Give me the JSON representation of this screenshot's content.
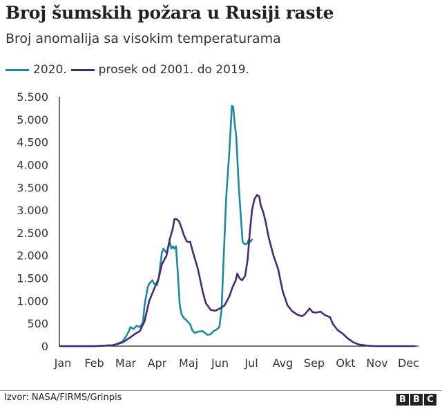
{
  "header": {
    "title": "Broj šumskih požara u Rusiji raste",
    "subtitle": "Broj anomalija sa visokim temperaturama"
  },
  "legend": [
    {
      "label": "2020.",
      "color": "#1a8aa3"
    },
    {
      "label": "prosek od 2001. do 2019.",
      "color": "#4a2878"
    }
  ],
  "footer": {
    "source": "Izvor: NASA/FIRMS/Grinpis",
    "logo_letters": [
      "B",
      "B",
      "C"
    ]
  },
  "chart_data": {
    "type": "line",
    "title": "Broj šumskih požara u Rusiji raste",
    "subtitle": "Broj anomalija sa visokim temperaturama",
    "xlabel": "",
    "ylabel": "",
    "x_unit": "month index (0 = Jan, 11 = Dec)",
    "categories": [
      "Jan",
      "Feb",
      "Mar",
      "Apr",
      "Maj",
      "Jun",
      "Jul",
      "Avg",
      "Sep",
      "Okt",
      "Nov",
      "Dec"
    ],
    "ylim": [
      0,
      5500
    ],
    "yticks": [
      0,
      500,
      1000,
      1500,
      2000,
      2500,
      3000,
      3500,
      4000,
      4500,
      5000,
      5500
    ],
    "ytick_labels": [
      "0",
      "500",
      "1.000",
      "1.500",
      "2.000",
      "2.500",
      "3.000",
      "3.500",
      "4.000",
      "4.500",
      "5.000",
      "5.500"
    ],
    "grid": false,
    "legend_position": "top-left",
    "series": [
      {
        "name": "2020.",
        "color": "#1a8aa3",
        "x": [
          -0.1,
          1.0,
          1.6,
          1.9,
          2.0,
          2.1,
          2.15,
          2.25,
          2.35,
          2.45,
          2.55,
          2.6,
          2.7,
          2.75,
          2.85,
          2.9,
          3.0,
          3.05,
          3.15,
          3.2,
          3.3,
          3.4,
          3.45,
          3.5,
          3.55,
          3.6,
          3.65,
          3.72,
          3.78,
          3.85,
          3.95,
          4.05,
          4.12,
          4.2,
          4.3,
          4.45,
          4.6,
          4.7,
          4.8,
          4.92,
          4.98,
          5.05,
          5.12,
          5.2,
          5.3,
          5.38,
          5.42,
          5.47,
          5.52,
          5.6,
          5.65,
          5.72,
          5.78,
          5.85,
          5.92,
          5.97,
          6.02
        ],
        "values": [
          0,
          0,
          20,
          100,
          200,
          330,
          420,
          380,
          450,
          420,
          520,
          900,
          1300,
          1380,
          1450,
          1380,
          1350,
          1500,
          2050,
          2150,
          2050,
          2300,
          2150,
          2200,
          2150,
          2200,
          1700,
          900,
          700,
          620,
          560,
          480,
          350,
          290,
          320,
          330,
          250,
          260,
          330,
          380,
          420,
          800,
          2000,
          3300,
          4300,
          5300,
          5280,
          4900,
          4600,
          3500,
          3000,
          2300,
          2250,
          2250,
          2350,
          2300,
          2350
        ]
      },
      {
        "name": "prosek od 2001. do 2019.",
        "color": "#4a2878",
        "x": [
          -0.1,
          1.0,
          1.6,
          1.9,
          2.1,
          2.3,
          2.45,
          2.6,
          2.75,
          2.9,
          3.05,
          3.15,
          3.3,
          3.4,
          3.5,
          3.55,
          3.62,
          3.7,
          3.78,
          3.85,
          3.95,
          4.05,
          4.15,
          4.3,
          4.45,
          4.55,
          4.7,
          4.85,
          5.0,
          5.15,
          5.3,
          5.4,
          5.5,
          5.55,
          5.62,
          5.7,
          5.8,
          5.88,
          5.95,
          6.02,
          6.1,
          6.18,
          6.25,
          6.3,
          6.38,
          6.45,
          6.55,
          6.7,
          6.85,
          7.0,
          7.15,
          7.3,
          7.45,
          7.6,
          7.7,
          7.85,
          7.95,
          8.05,
          8.2,
          8.35,
          8.5,
          8.6,
          8.75,
          8.9,
          9.05,
          9.25,
          9.45,
          9.7,
          9.95,
          10.25,
          10.6,
          11.2
        ],
        "values": [
          0,
          0,
          20,
          80,
          170,
          270,
          330,
          550,
          1000,
          1250,
          1500,
          1800,
          2000,
          2350,
          2600,
          2800,
          2800,
          2750,
          2600,
          2450,
          2300,
          2300,
          2050,
          1700,
          1200,
          950,
          800,
          780,
          830,
          900,
          1100,
          1300,
          1450,
          1600,
          1500,
          1450,
          1550,
          1900,
          2500,
          3000,
          3250,
          3330,
          3300,
          3100,
          2950,
          2750,
          2400,
          2000,
          1700,
          1200,
          900,
          770,
          700,
          660,
          700,
          830,
          750,
          740,
          760,
          680,
          640,
          480,
          350,
          280,
          180,
          80,
          30,
          10,
          0,
          0,
          0,
          0
        ]
      }
    ]
  }
}
